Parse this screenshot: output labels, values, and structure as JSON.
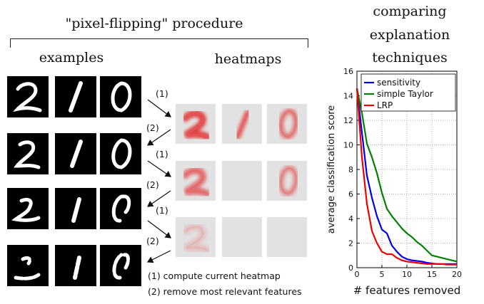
{
  "procedure_title": "\"pixel-flipping\" procedure",
  "examples_label": "examples",
  "heatmaps_label": "heatmaps",
  "step_labels": [
    "(1)",
    "(2)",
    "(1)",
    "(2)",
    "(1)",
    "(2)"
  ],
  "legend": [
    "(1)  compute current heatmap",
    "(2)  remove most relevant features"
  ],
  "chart_title": [
    "comparing",
    "explanation",
    "techniques"
  ],
  "chart_data": {
    "type": "line",
    "xlabel": "# features removed",
    "ylabel": "average classification score",
    "xlim": [
      0,
      20
    ],
    "ylim": [
      0,
      16
    ],
    "xticks": [
      0,
      5,
      10,
      15,
      20
    ],
    "yticks": [
      0,
      2,
      4,
      6,
      8,
      10,
      12,
      14,
      16
    ],
    "grid": true,
    "legend_position": "top-right",
    "series": [
      {
        "name": "sensitivity",
        "color": "#0000ee",
        "x": [
          0,
          1,
          2,
          3,
          4,
          5,
          6,
          7,
          8,
          9,
          10,
          11,
          12,
          13,
          14,
          15,
          16,
          17,
          18,
          19,
          20
        ],
        "y": [
          14.6,
          11.0,
          7.5,
          5.7,
          4.2,
          3.1,
          2.8,
          1.8,
          1.3,
          0.9,
          0.7,
          0.6,
          0.55,
          0.5,
          0.4,
          0.35,
          0.3,
          0.3,
          0.3,
          0.3,
          0.3
        ]
      },
      {
        "name": "simple Taylor",
        "color": "#008000",
        "x": [
          0,
          1,
          2,
          3,
          4,
          5,
          6,
          7,
          8,
          9,
          10,
          11,
          12,
          13,
          14,
          15,
          16,
          17,
          18,
          19,
          20
        ],
        "y": [
          14.6,
          12.6,
          10.1,
          9.0,
          7.7,
          6.1,
          4.8,
          4.2,
          3.7,
          3.2,
          2.8,
          2.5,
          2.1,
          1.8,
          1.4,
          1.0,
          0.9,
          0.8,
          0.7,
          0.6,
          0.5
        ]
      },
      {
        "name": "LRP",
        "color": "#ee0000",
        "x": [
          0,
          1,
          2,
          3,
          4,
          5,
          6,
          7,
          8,
          9,
          10,
          11,
          12,
          13,
          14,
          15,
          16,
          17,
          18,
          19,
          20
        ],
        "y": [
          14.6,
          9.0,
          5.2,
          3.0,
          2.0,
          1.3,
          1.1,
          1.1,
          0.8,
          0.6,
          0.5,
          0.45,
          0.4,
          0.35,
          0.3,
          0.3,
          0.3,
          0.3,
          0.25,
          0.25,
          0.25
        ]
      }
    ]
  }
}
